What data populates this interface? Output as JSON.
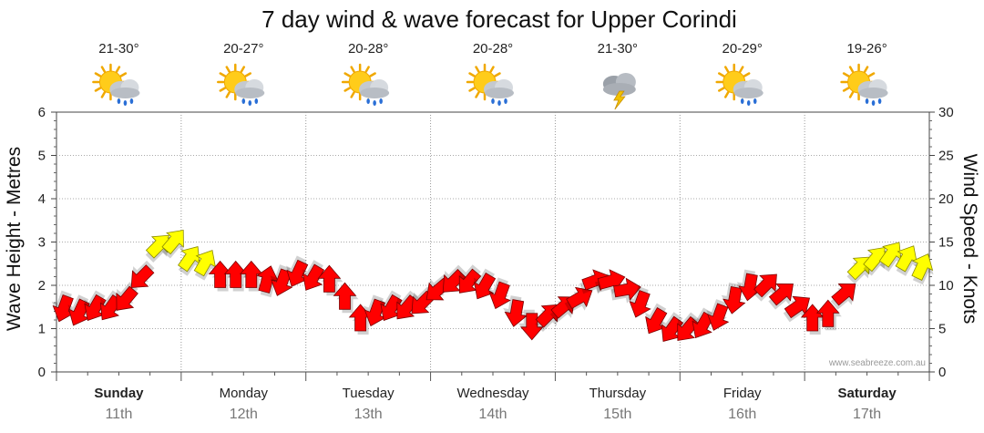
{
  "chart_data": {
    "type": "line",
    "title": "7 day wind & wave forecast for Upper Corindi",
    "ylabel": "Wave Height - Metres",
    "y2label": "Wind Speed - Knots",
    "ylim": [
      0,
      6
    ],
    "y2lim": [
      0,
      30
    ],
    "yticks": [
      "0",
      "1",
      "2",
      "3",
      "4",
      "5",
      "6"
    ],
    "y2ticks": [
      "0",
      "5",
      "10",
      "15",
      "20",
      "25",
      "30"
    ],
    "grid": true,
    "credit": "www.seabreeze.com.au",
    "days": [
      {
        "name": "Sunday",
        "date": "11th",
        "temp": "21-30°",
        "icon": "sun-cloud-showers-icon",
        "bold": true
      },
      {
        "name": "Monday",
        "date": "12th",
        "temp": "20-27°",
        "icon": "sun-cloud-showers-icon",
        "bold": false
      },
      {
        "name": "Tuesday",
        "date": "13th",
        "temp": "20-28°",
        "icon": "sun-cloud-showers-icon",
        "bold": false
      },
      {
        "name": "Wednesday",
        "date": "14th",
        "temp": "20-28°",
        "icon": "sun-cloud-showers-icon",
        "bold": false
      },
      {
        "name": "Thursday",
        "date": "15th",
        "temp": "21-30°",
        "icon": "storm-cloud-lightning-icon",
        "bold": false
      },
      {
        "name": "Friday",
        "date": "16th",
        "temp": "20-29°",
        "icon": "sun-cloud-showers-icon",
        "bold": false
      },
      {
        "name": "Saturday",
        "date": "17th",
        "temp": "19-26°",
        "icon": "sun-cloud-showers-icon",
        "bold": true
      }
    ],
    "wind_series": {
      "name": "Wind",
      "unit": "knots",
      "x_hours": [
        0,
        3,
        6,
        9,
        12,
        15,
        18,
        21,
        24,
        27,
        30,
        33,
        36,
        39,
        42,
        45,
        48,
        51,
        54,
        57,
        60,
        63,
        66,
        69,
        72,
        75,
        78,
        81,
        84,
        87,
        90,
        93,
        96,
        99,
        102,
        105,
        108,
        111,
        114,
        117,
        120,
        123,
        126,
        129,
        132,
        135,
        138,
        141,
        144,
        147,
        150,
        153,
        156,
        159,
        162,
        165
      ],
      "speed": [
        7.5,
        7,
        7.5,
        7.5,
        8.5,
        11,
        14.5,
        15,
        13,
        12.5,
        11,
        11,
        11,
        10.5,
        10.5,
        11.5,
        11,
        10.5,
        8.5,
        6,
        7,
        7.5,
        7.5,
        8,
        9.5,
        10.5,
        10.5,
        10,
        9,
        7,
        5.5,
        6.5,
        7.5,
        8.5,
        10.5,
        10.5,
        9.5,
        8,
        6,
        5,
        5,
        5.5,
        6.5,
        8.5,
        10,
        10,
        9,
        7.5,
        6,
        6.5,
        9,
        12,
        13,
        13.5,
        13,
        12
      ],
      "dir_deg": [
        200,
        205,
        210,
        215,
        220,
        225,
        45,
        40,
        35,
        30,
        0,
        0,
        0,
        15,
        200,
        205,
        210,
        0,
        0,
        0,
        200,
        210,
        220,
        225,
        230,
        225,
        220,
        210,
        200,
        190,
        180,
        45,
        50,
        60,
        70,
        75,
        80,
        200,
        210,
        215,
        220,
        210,
        200,
        190,
        190,
        45,
        50,
        55,
        0,
        0,
        50,
        45,
        40,
        35,
        30,
        25
      ],
      "strong_knots": 12
    },
    "legend": "none"
  }
}
